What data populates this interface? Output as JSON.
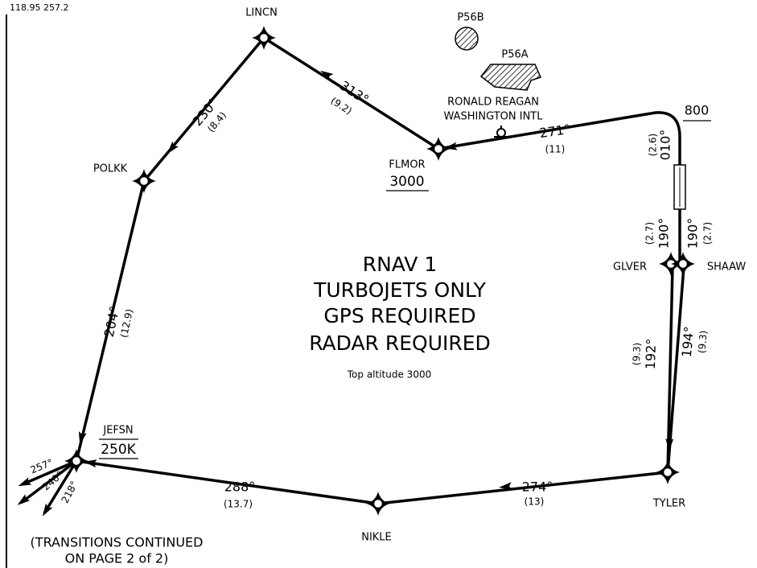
{
  "frequencies": "118.95  257.2",
  "waypoints": [
    {
      "name": "LINCN"
    },
    {
      "name": "POLKK"
    },
    {
      "name": "FLMOR",
      "altitude": "3000"
    },
    {
      "name": "GLVER"
    },
    {
      "name": "SHAAW"
    },
    {
      "name": "TYLER"
    },
    {
      "name": "NIKLE"
    },
    {
      "name": "JEFSN",
      "altitude": "250K"
    }
  ],
  "airport": {
    "name_lines": [
      "RONALD REAGAN",
      "WASHINGTON INTL"
    ],
    "altitude": "800"
  },
  "prohibited_areas": [
    "P56B",
    "P56A"
  ],
  "legs": [
    {
      "course": "230°",
      "distance": "(8.4)"
    },
    {
      "course": "313°",
      "distance": "(9.2)"
    },
    {
      "course": "271°",
      "distance": "(11)"
    },
    {
      "course": "010°",
      "distance": "(2.6)"
    },
    {
      "course": "190°",
      "distance": "(2.7)"
    },
    {
      "course": "190°",
      "distance": "(2.7)"
    },
    {
      "course": "192°",
      "distance": "(9.3)"
    },
    {
      "course": "194°",
      "distance": "(9.3)"
    },
    {
      "course": "204°",
      "distance": "(12.9)"
    },
    {
      "course": "274°",
      "distance": "(13)"
    },
    {
      "course": "288°",
      "distance": "(13.7)"
    }
  ],
  "transitions": [
    "257°",
    "240°",
    "218°"
  ],
  "notes": [
    "RNAV 1",
    "TURBOJETS ONLY",
    "GPS REQUIRED",
    "RADAR REQUIRED"
  ],
  "top_altitude": "Top altitude 3000",
  "continuation": [
    "(TRANSITIONS CONTINUED",
    "ON PAGE 2 of 2)"
  ]
}
